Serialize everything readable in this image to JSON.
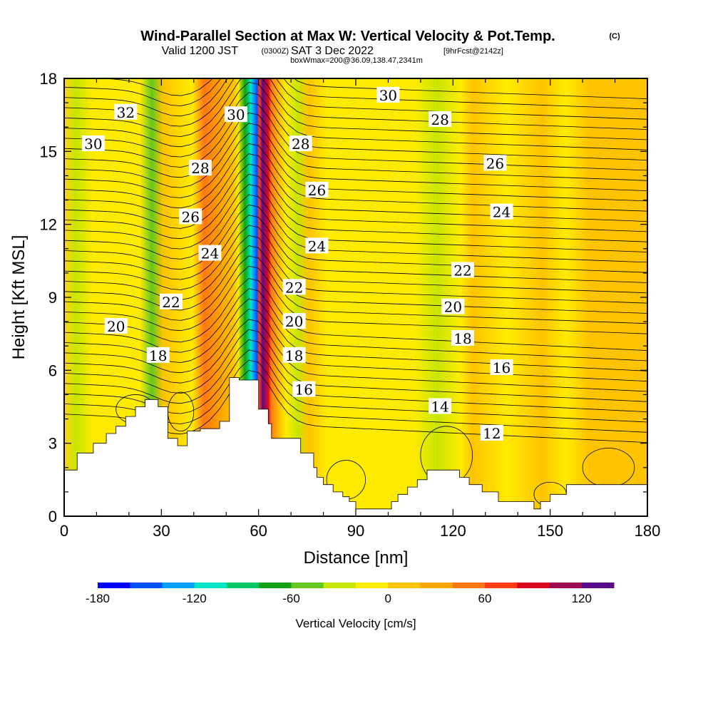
{
  "title": {
    "main": "Wind-Parallel Section at Max W: Vertical Velocity & Pot.Temp.",
    "copyright": "(C)",
    "valid_prefix": "Valid 1200 JST",
    "valid_utc": "(0300Z)",
    "valid_date": "SAT 3 Dec 2022",
    "forecast": "[9hrFcst@2142z]",
    "box_info": "boxWmax=200@36.09,138.47,2341m"
  },
  "chart_data": {
    "type": "heatmap",
    "xlabel": "Distance [nm]",
    "ylabel": "Height [Kft MSL]",
    "xlim": [
      0,
      180
    ],
    "ylim": [
      0,
      18
    ],
    "x_ticks": [
      "0",
      "30",
      "60",
      "90",
      "120",
      "150",
      "180"
    ],
    "y_ticks": [
      "0",
      "3",
      "6",
      "9",
      "12",
      "15",
      "18"
    ],
    "colorbar": {
      "label": "Vertical Velocity [cm/s]",
      "ticks": [
        "-180",
        "-120",
        "-60",
        "0",
        "60",
        "120"
      ],
      "levels": [
        -180,
        -160,
        -140,
        -120,
        -100,
        -80,
        -60,
        -40,
        -20,
        0,
        20,
        40,
        60,
        80,
        100,
        120,
        140
      ],
      "colors": [
        "#0000ff",
        "#0050ff",
        "#00a0ff",
        "#00e6c8",
        "#00c864",
        "#14a014",
        "#64c81e",
        "#c8e600",
        "#ffeb00",
        "#ffc300",
        "#ffa500",
        "#ff7814",
        "#ff3c14",
        "#dc0a1e",
        "#a00a50",
        "#5a0a8c"
      ]
    },
    "contour_labels": [
      {
        "text": "32",
        "x": 19,
        "y": 16.6
      },
      {
        "text": "30",
        "x": 9,
        "y": 15.3
      },
      {
        "text": "30",
        "x": 53,
        "y": 16.5
      },
      {
        "text": "28",
        "x": 42,
        "y": 14.3
      },
      {
        "text": "28",
        "x": 73,
        "y": 15.3
      },
      {
        "text": "26",
        "x": 39,
        "y": 12.3
      },
      {
        "text": "26",
        "x": 78,
        "y": 13.4
      },
      {
        "text": "24",
        "x": 45,
        "y": 10.8
      },
      {
        "text": "24",
        "x": 78,
        "y": 11.1
      },
      {
        "text": "22",
        "x": 33,
        "y": 8.8
      },
      {
        "text": "22",
        "x": 71,
        "y": 9.4
      },
      {
        "text": "20",
        "x": 16,
        "y": 7.8
      },
      {
        "text": "20",
        "x": 71,
        "y": 8.0
      },
      {
        "text": "18",
        "x": 29,
        "y": 6.6
      },
      {
        "text": "18",
        "x": 71,
        "y": 6.6
      },
      {
        "text": "16",
        "x": 74,
        "y": 5.2
      },
      {
        "text": "30",
        "x": 100,
        "y": 17.3
      },
      {
        "text": "28",
        "x": 116,
        "y": 16.3
      },
      {
        "text": "26",
        "x": 133,
        "y": 14.5
      },
      {
        "text": "24",
        "x": 135,
        "y": 12.5
      },
      {
        "text": "22",
        "x": 123,
        "y": 10.1
      },
      {
        "text": "20",
        "x": 120,
        "y": 8.6
      },
      {
        "text": "18",
        "x": 123,
        "y": 7.3
      },
      {
        "text": "16",
        "x": 135,
        "y": 6.1
      },
      {
        "text": "14",
        "x": 116,
        "y": 4.5
      },
      {
        "text": "12",
        "x": 132,
        "y": 3.4
      }
    ]
  }
}
